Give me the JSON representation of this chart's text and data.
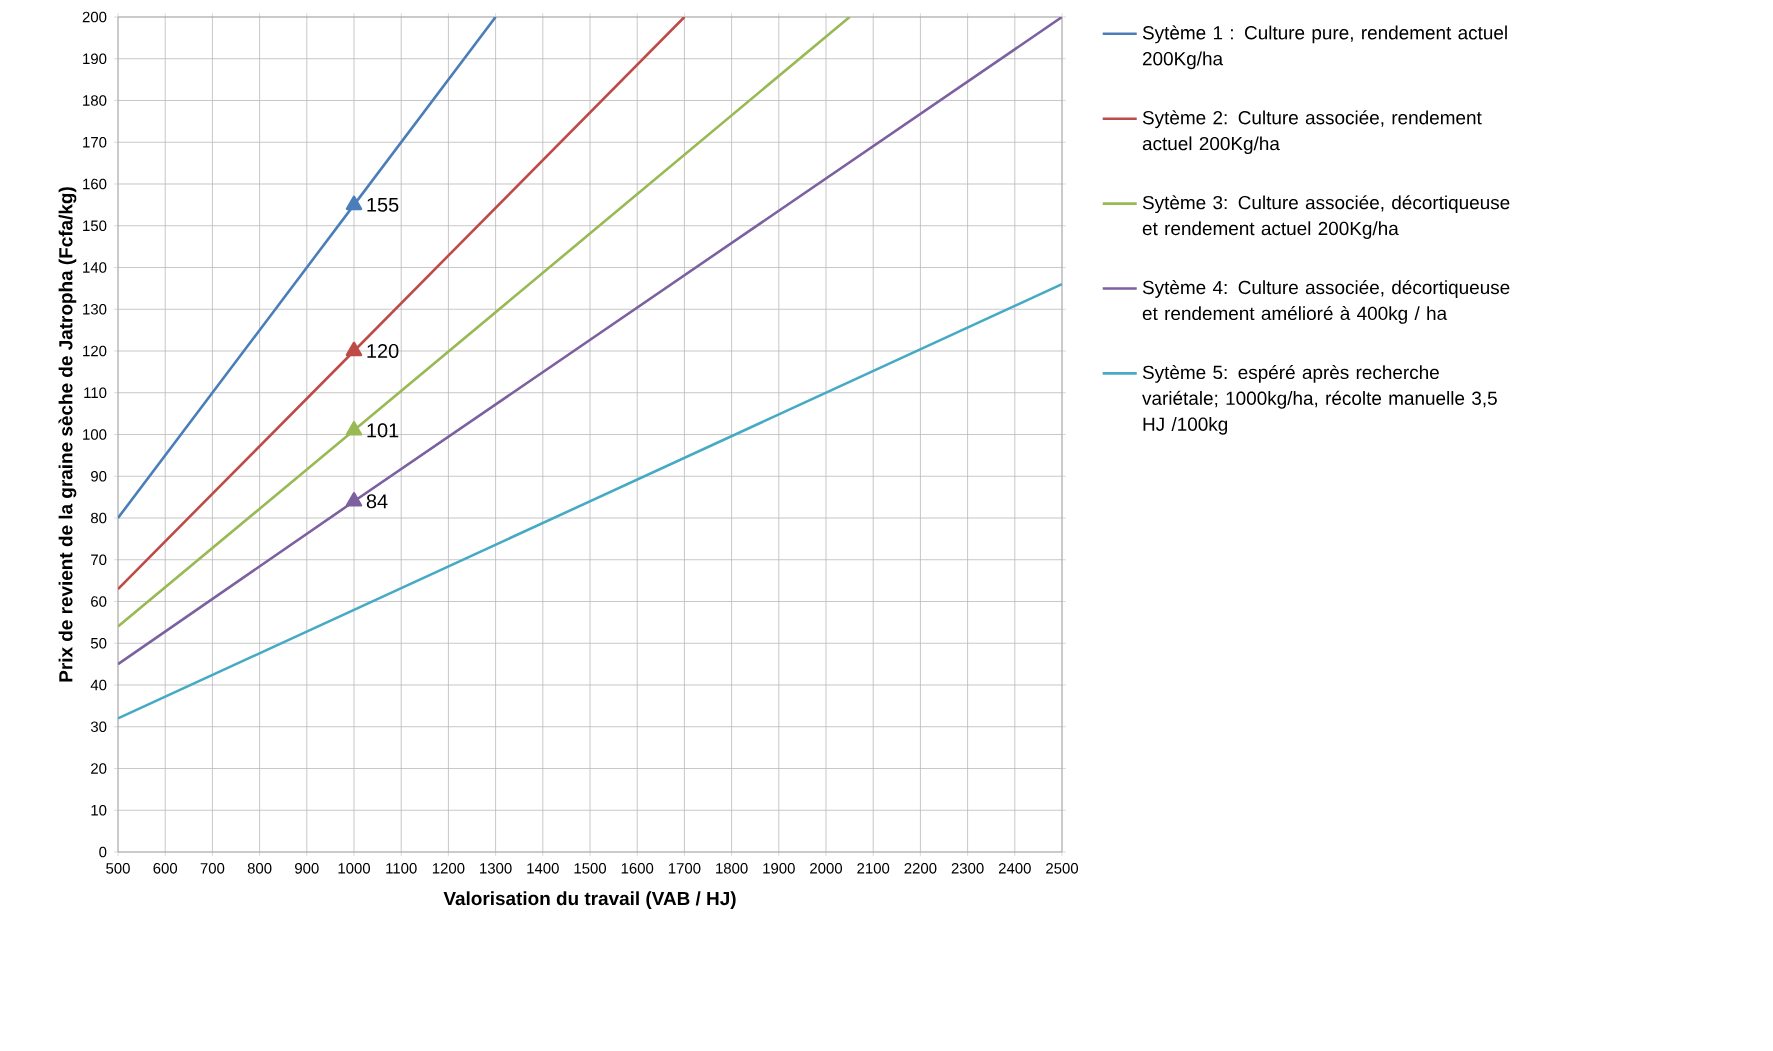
{
  "chart_data": {
    "type": "line",
    "xlabel": "Valorisation du travail (VAB / HJ)",
    "ylabel": "Prix de revient de la graine sèche de Jatropha (Fcfa/kg)",
    "xlim": [
      500,
      2500
    ],
    "ylim": [
      0,
      200
    ],
    "xticks": [
      500,
      600,
      700,
      800,
      900,
      1000,
      1100,
      1200,
      1300,
      1400,
      1500,
      1600,
      1700,
      1800,
      1900,
      2000,
      2100,
      2200,
      2300,
      2400,
      2500
    ],
    "yticks": [
      0,
      10,
      20,
      30,
      40,
      50,
      60,
      70,
      80,
      90,
      100,
      110,
      120,
      130,
      140,
      150,
      160,
      170,
      180,
      190,
      200
    ],
    "grid": true,
    "legend": "right",
    "marker": "none",
    "line_style": "solid",
    "series": [
      {
        "name": "Sytème 1 : Culture pure, rendement actuel 200Kg/ha",
        "color": "#4a7ebb",
        "x": [
          500,
          1000,
          1300
        ],
        "values": [
          80,
          155,
          200
        ]
      },
      {
        "name": "Sytème 2: Culture associée, rendement actuel 200Kg/ha",
        "color": "#be4b48",
        "x": [
          500,
          1000,
          1700
        ],
        "values": [
          63,
          120,
          200
        ]
      },
      {
        "name": "Sytème 3: Culture associée, décortiqueuse et rendement actuel 200Kg/ha",
        "color": "#98b954",
        "x": [
          500,
          1000,
          2050
        ],
        "values": [
          54,
          101,
          200
        ]
      },
      {
        "name": "Sytème 4: Culture associée, décortiqueuse et rendement amélioré à 400kg / ha",
        "color": "#7d60a0",
        "x": [
          500,
          1000,
          2500
        ],
        "values": [
          45,
          84,
          200
        ]
      },
      {
        "name": "Sytème 5: espéré après recherche variétale; 1000kg/ha, récolte manuelle 3,5 HJ /100kg",
        "color": "#46aac5",
        "x": [
          500,
          1000,
          2500
        ],
        "values": [
          32,
          58,
          136
        ]
      },
      {
        "type": "scatter",
        "marker": "triangle",
        "color": "#4a7ebb",
        "x": [
          1000
        ],
        "values": [
          155
        ],
        "value_labels": [
          "155"
        ]
      },
      {
        "type": "scatter",
        "marker": "triangle",
        "color": "#be4b48",
        "x": [
          1000
        ],
        "values": [
          120
        ],
        "value_labels": [
          "120"
        ]
      },
      {
        "type": "scatter",
        "marker": "triangle",
        "color": "#98b954",
        "x": [
          1000
        ],
        "values": [
          101
        ],
        "value_labels": [
          "101"
        ]
      },
      {
        "type": "scatter",
        "marker": "triangle",
        "color": "#7d60a0",
        "x": [
          1000
        ],
        "values": [
          84
        ],
        "value_labels": [
          "84"
        ]
      }
    ]
  }
}
